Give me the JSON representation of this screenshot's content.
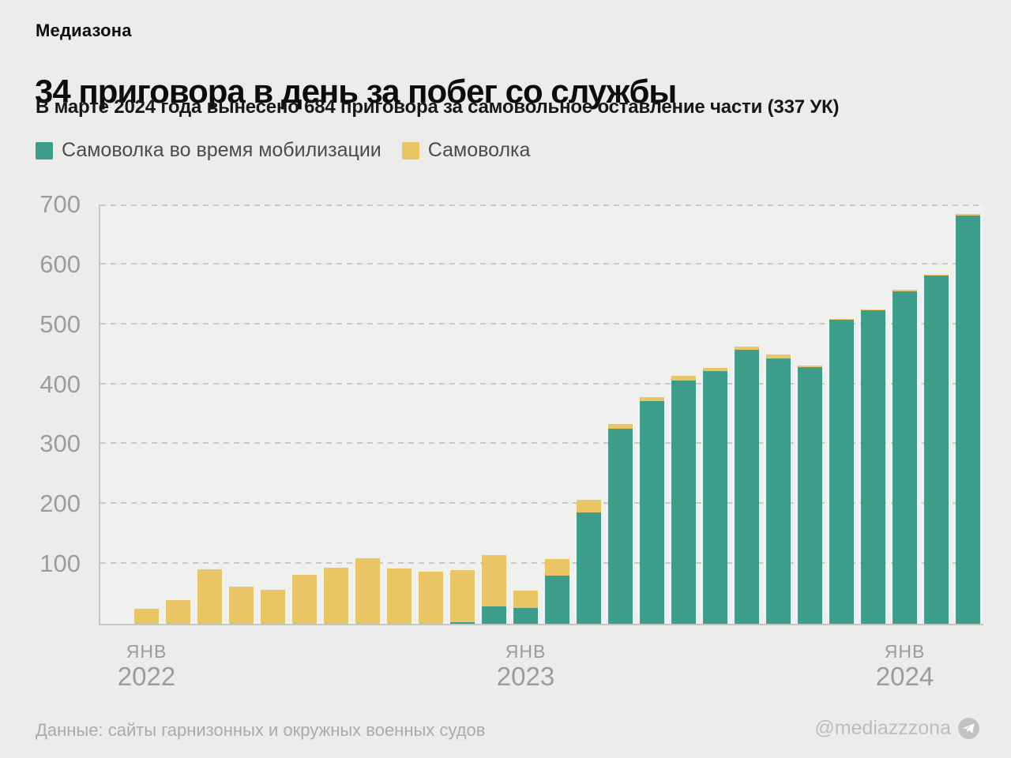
{
  "brand": "Медиазона",
  "header": {
    "title": "34 приговора в день за побег со службы",
    "subtitle": "В марте 2024 года вынесено 684 приговора за самовольное оставление части (337 УК)"
  },
  "legend": {
    "items": [
      {
        "label": "Самоволка во время мобилизации",
        "color": "#3E9C8B"
      },
      {
        "label": "Самоволка",
        "color": "#E9C565"
      }
    ]
  },
  "footer": {
    "source": "Данные: сайты гарнизонных и окружных военных судов",
    "handle": "@mediazzzona",
    "handle_icon": "telegram-icon"
  },
  "colors": {
    "background": "#ECECEA",
    "plot_background": "#F0F0EE",
    "mobilization_green": "#3E9C8B",
    "regular_yellow": "#E9C565",
    "grid": "#C9C9C7",
    "axis": "#C6C6C4",
    "tick_text": "#9C9C9A",
    "title_text": "#0C0C0C",
    "footer_text": "#ABABA9"
  },
  "chart_data": {
    "type": "bar",
    "stacked": true,
    "title": "34 приговора в день за побег со службы",
    "x_months": [
      "янв 2022",
      "фев 2022",
      "мар 2022",
      "апр 2022",
      "май 2022",
      "июн 2022",
      "июл 2022",
      "авг 2022",
      "сен 2022",
      "окт 2022",
      "ноя 2022",
      "дек 2022",
      "янв 2023",
      "фев 2023",
      "мар 2023",
      "апр 2023",
      "май 2023",
      "июн 2023",
      "июл 2023",
      "авг 2023",
      "сен 2023",
      "окт 2023",
      "ноя 2023",
      "дек 2023",
      "янв 2024",
      "фев 2024",
      "мар 2024"
    ],
    "series": [
      {
        "name": "Самоволка во время мобилизации",
        "color": "#3E9C8B",
        "values": [
          0,
          0,
          0,
          0,
          0,
          0,
          0,
          0,
          0,
          0,
          2,
          29,
          26,
          80,
          186,
          326,
          372,
          406,
          422,
          457,
          443,
          428,
          507,
          523,
          555,
          581,
          682
        ]
      },
      {
        "name": "Самоволка",
        "color": "#E9C565",
        "values": [
          25,
          40,
          91,
          62,
          57,
          82,
          94,
          109,
          92,
          87,
          88,
          86,
          30,
          28,
          21,
          7,
          7,
          8,
          5,
          6,
          6,
          3,
          2,
          2,
          2,
          2,
          2
        ]
      }
    ],
    "totals": [
      25,
      40,
      91,
      62,
      57,
      82,
      94,
      109,
      92,
      87,
      90,
      115,
      56,
      108,
      207,
      333,
      379,
      414,
      427,
      463,
      449,
      431,
      509,
      525,
      557,
      583,
      684
    ],
    "ylim": [
      0,
      700
    ],
    "yticks": [
      100,
      200,
      300,
      400,
      500,
      600,
      700
    ],
    "xticks": [
      {
        "month": "янв",
        "year": "2022",
        "bar_index": 0
      },
      {
        "month": "янв",
        "year": "2023",
        "bar_index": 12
      },
      {
        "month": "янв",
        "year": "2024",
        "bar_index": 24
      }
    ],
    "grid": "horizontal-dashed",
    "legend_position": "top-left",
    "annotation_march_2024_total": 684
  }
}
